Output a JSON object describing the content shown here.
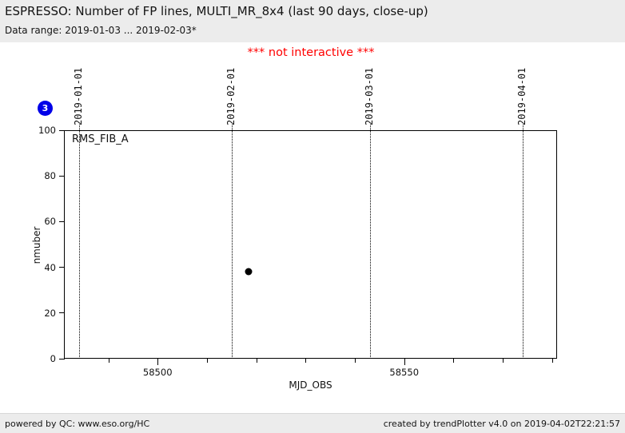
{
  "header": {
    "title": "ESPRESSO: Number of FP lines, MULTI_MR_8x4 (last 90 days, close-up)",
    "subtitle": "Data range: 2019-01-03 ... 2019-02-03*"
  },
  "notice": "*** not interactive ***",
  "badge": {
    "value": "3",
    "color": "#0000e8"
  },
  "footer": {
    "left": "powered by QC: www.eso.org/HC",
    "right": "created by trendPlotter v4.0 on 2019-04-02T22:21:57"
  },
  "colors": {
    "header_bg": "#ececec",
    "notice_red": "#ff0000",
    "badge_blue": "#0000e8",
    "point_black": "#000000"
  },
  "chart_data": {
    "type": "scatter",
    "title": "ESPRESSO: Number of FP lines, MULTI_MR_8x4 (last 90 days, close-up)",
    "xlabel": "MJD_OBS",
    "ylabel": "nmuber",
    "annotation": "RMS_FIB_A",
    "xlim": [
      58481,
      58581
    ],
    "ylim": [
      0,
      100
    ],
    "x_major_ticks": [
      58500,
      58550
    ],
    "x_minor_ticks": [
      58490,
      58510,
      58520,
      58530,
      58540,
      58560,
      58570,
      58580
    ],
    "y_ticks": [
      0,
      20,
      40,
      60,
      80,
      100
    ],
    "date_gridlines": [
      {
        "label": "2019-01-01",
        "x": 58484
      },
      {
        "label": "2019-02-01",
        "x": 58515
      },
      {
        "label": "2019-03-01",
        "x": 58543
      },
      {
        "label": "2019-04-01",
        "x": 58574
      }
    ],
    "series": [
      {
        "name": "RMS_FIB_A",
        "points": [
          {
            "x": 58518.5,
            "y": 38
          }
        ]
      }
    ],
    "grid": false,
    "legend": "none",
    "point_count_badge": "3"
  }
}
